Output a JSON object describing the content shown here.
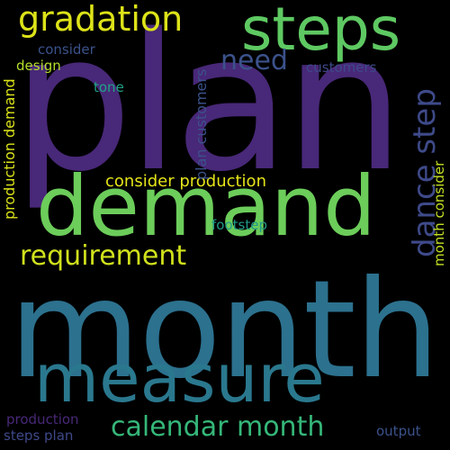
{
  "background": "#000000",
  "words": {
    "plan": {
      "text": "plan",
      "color": "#482878"
    },
    "steps": {
      "text": "steps",
      "color": "#5ec962"
    },
    "gradation": {
      "text": "gradation",
      "color": "#dde318"
    },
    "demand": {
      "text": "demand",
      "color": "#6ccd5a"
    },
    "month": {
      "text": "month",
      "color": "#2c718e"
    },
    "measure": {
      "text": "measure",
      "color": "#2a788e"
    },
    "dance_step": {
      "text": "dance step",
      "color": "#3e4a89"
    },
    "requirement": {
      "text": "requirement",
      "color": "#d0e11c"
    },
    "need": {
      "text": "need",
      "color": "#3b528b"
    },
    "calendar_month": {
      "text": "calendar month",
      "color": "#35b779"
    },
    "consider_production": {
      "text": "consider production",
      "color": "#e5e419"
    },
    "production_demand": {
      "text": "production demand",
      "color": "#dae319"
    },
    "plan_customers": {
      "text": "plan customers",
      "color": "#3b528b"
    },
    "month_consider": {
      "text": "month consider",
      "color": "#c2df23"
    },
    "consider": {
      "text": "consider",
      "color": "#3b528b"
    },
    "design": {
      "text": "design",
      "color": "#b5de2b"
    },
    "customers": {
      "text": "customers",
      "color": "#3e4989"
    },
    "tone": {
      "text": "tone",
      "color": "#20a386"
    },
    "footstep": {
      "text": "footstep",
      "color": "#1f9a8a"
    },
    "production": {
      "text": "production",
      "color": "#482878"
    },
    "steps_plan": {
      "text": "steps plan",
      "color": "#3e4989"
    },
    "output": {
      "text": "output",
      "color": "#3b528b"
    }
  }
}
